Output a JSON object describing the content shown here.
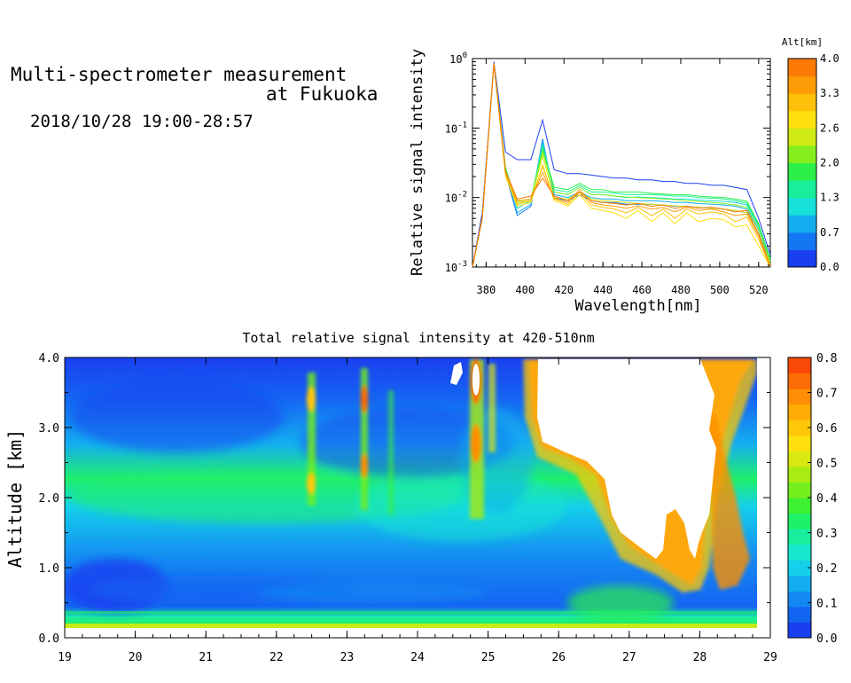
{
  "header": {
    "title_line1": "Multi-spectrometer measurement",
    "title_line2": "at Fukuoka",
    "datetime": "2018/10/28 19:00-28:57"
  },
  "chart_data": [
    {
      "type": "line",
      "id": "spectrum",
      "xlabel": "Wavelength[nm]",
      "ylabel": "Relative signal intensity",
      "x_ticks": [
        "380",
        "400",
        "420",
        "440",
        "460",
        "480",
        "500",
        "520"
      ],
      "y_scale": "log",
      "ylim": [
        0.001,
        1
      ],
      "xlim": [
        373,
        526
      ],
      "y_ticks": [
        {
          "value": 0.001,
          "base": "10",
          "exp": "-3"
        },
        {
          "value": 0.01,
          "base": "10",
          "exp": "-2"
        },
        {
          "value": 0.1,
          "base": "10",
          "exp": "-1"
        },
        {
          "value": 1,
          "base": "10",
          "exp": "0"
        }
      ],
      "colorbar": {
        "label": "Alt[km]",
        "ticks": [
          "0.0",
          "0.7",
          "1.3",
          "2.0",
          "2.6",
          "3.3",
          "4.0"
        ],
        "colors": [
          "#1a3ff0",
          "#1477f2",
          "#14aef0",
          "#16e0d8",
          "#19ee9a",
          "#2bef48",
          "#84ee1c",
          "#cfe914",
          "#fde00c",
          "#fec008",
          "#fd9c06",
          "#fc7a04"
        ]
      },
      "x": [
        373,
        378,
        384,
        390,
        396,
        403,
        409,
        415,
        422,
        428,
        434,
        440,
        446,
        452,
        458,
        465,
        471,
        477,
        483,
        489,
        496,
        502,
        508,
        514,
        520,
        526
      ],
      "series": [
        {
          "color": "#1a3ff0",
          "values": [
            0.001,
            0.006,
            0.9,
            0.045,
            0.035,
            0.035,
            0.13,
            0.025,
            0.022,
            0.022,
            0.021,
            0.02,
            0.019,
            0.019,
            0.018,
            0.018,
            0.017,
            0.017,
            0.016,
            0.016,
            0.015,
            0.015,
            0.014,
            0.013,
            0.005,
            0.0015
          ]
        },
        {
          "color": "#1477f2",
          "values": [
            0.001,
            0.005,
            0.85,
            0.022,
            0.0055,
            0.0075,
            0.07,
            0.01,
            0.009,
            0.011,
            0.009,
            0.0085,
            0.0085,
            0.008,
            0.008,
            0.008,
            0.0078,
            0.0075,
            0.0075,
            0.0072,
            0.007,
            0.0068,
            0.0065,
            0.006,
            0.003,
            0.0012
          ]
        },
        {
          "color": "#14aef0",
          "values": [
            0.001,
            0.005,
            0.85,
            0.024,
            0.006,
            0.008,
            0.065,
            0.011,
            0.01,
            0.012,
            0.01,
            0.0095,
            0.0095,
            0.009,
            0.009,
            0.009,
            0.0088,
            0.0085,
            0.0085,
            0.0082,
            0.008,
            0.0078,
            0.0075,
            0.0068,
            0.0034,
            0.0013
          ]
        },
        {
          "color": "#16e0d8",
          "values": [
            0.001,
            0.005,
            0.85,
            0.025,
            0.007,
            0.009,
            0.06,
            0.012,
            0.011,
            0.014,
            0.011,
            0.011,
            0.0105,
            0.01,
            0.0102,
            0.01,
            0.0098,
            0.0095,
            0.0095,
            0.0092,
            0.009,
            0.0088,
            0.0085,
            0.0078,
            0.0038,
            0.0013
          ]
        },
        {
          "color": "#19ee9a",
          "values": [
            0.001,
            0.005,
            0.85,
            0.026,
            0.008,
            0.009,
            0.055,
            0.013,
            0.012,
            0.015,
            0.012,
            0.012,
            0.0115,
            0.011,
            0.011,
            0.011,
            0.0108,
            0.0105,
            0.0105,
            0.01,
            0.0098,
            0.0095,
            0.009,
            0.0083,
            0.004,
            0.0013
          ]
        },
        {
          "color": "#2bef48",
          "values": [
            0.001,
            0.005,
            0.85,
            0.027,
            0.008,
            0.009,
            0.05,
            0.014,
            0.013,
            0.016,
            0.013,
            0.013,
            0.012,
            0.012,
            0.012,
            0.0115,
            0.0112,
            0.011,
            0.011,
            0.0105,
            0.0102,
            0.01,
            0.0095,
            0.0088,
            0.0042,
            0.0013
          ]
        },
        {
          "color": "#84ee1c",
          "values": [
            0.001,
            0.005,
            0.85,
            0.024,
            0.009,
            0.0095,
            0.045,
            0.012,
            0.011,
            0.014,
            0.011,
            0.011,
            0.0105,
            0.0102,
            0.01,
            0.0098,
            0.0095,
            0.0093,
            0.009,
            0.0088,
            0.0085,
            0.0082,
            0.0078,
            0.0072,
            0.0035,
            0.0012
          ]
        },
        {
          "color": "#cfe914",
          "values": [
            0.001,
            0.005,
            0.85,
            0.022,
            0.0085,
            0.009,
            0.04,
            0.01,
            0.0095,
            0.012,
            0.0095,
            0.009,
            0.0088,
            0.0085,
            0.0082,
            0.008,
            0.0078,
            0.0076,
            0.0074,
            0.0072,
            0.007,
            0.0068,
            0.0065,
            0.006,
            0.003,
            0.0011
          ]
        },
        {
          "color": "#fde00c",
          "values": [
            0.001,
            0.005,
            0.85,
            0.02,
            0.0075,
            0.0085,
            0.03,
            0.009,
            0.0075,
            0.011,
            0.007,
            0.0065,
            0.006,
            0.005,
            0.0065,
            0.0045,
            0.006,
            0.0042,
            0.006,
            0.0045,
            0.005,
            0.0048,
            0.0038,
            0.004,
            0.002,
            0.001
          ]
        },
        {
          "color": "#fec008",
          "values": [
            0.001,
            0.005,
            0.85,
            0.022,
            0.008,
            0.009,
            0.028,
            0.0095,
            0.008,
            0.012,
            0.0078,
            0.0072,
            0.0068,
            0.006,
            0.0072,
            0.0055,
            0.0068,
            0.005,
            0.0068,
            0.0058,
            0.0062,
            0.0058,
            0.0045,
            0.0052,
            0.0025,
            0.001
          ]
        },
        {
          "color": "#fd9c06",
          "values": [
            0.001,
            0.005,
            0.85,
            0.022,
            0.0088,
            0.0095,
            0.023,
            0.0098,
            0.0085,
            0.013,
            0.0085,
            0.0078,
            0.0075,
            0.007,
            0.0076,
            0.0068,
            0.0072,
            0.0062,
            0.0072,
            0.0065,
            0.0068,
            0.0062,
            0.0055,
            0.0058,
            0.0028,
            0.001
          ]
        },
        {
          "color": "#fc7a04",
          "values": [
            0.001,
            0.005,
            0.85,
            0.024,
            0.0095,
            0.0105,
            0.019,
            0.0105,
            0.009,
            0.012,
            0.009,
            0.0085,
            0.0082,
            0.0078,
            0.0082,
            0.0075,
            0.0078,
            0.007,
            0.0075,
            0.007,
            0.0072,
            0.0068,
            0.0062,
            0.0065,
            0.003,
            0.001
          ]
        }
      ]
    },
    {
      "type": "heatmap",
      "id": "intensity",
      "title": "Total relative signal intensity at 420-510nm",
      "ylabel": "Altitude [km]",
      "xlim": [
        19,
        29
      ],
      "ylim": [
        0,
        4
      ],
      "x_ticks": [
        "19",
        "20",
        "21",
        "22",
        "23",
        "24",
        "25",
        "26",
        "27",
        "28",
        "29"
      ],
      "y_ticks": [
        "0.0",
        "1.0",
        "2.0",
        "3.0",
        "4.0"
      ],
      "data_time_range": [
        19.0,
        28.95
      ],
      "colorbar": {
        "range": [
          0,
          0.8
        ],
        "ticks": [
          "0.0",
          "0.1",
          "0.2",
          "0.3",
          "0.4",
          "0.5",
          "0.6",
          "0.7",
          "0.8"
        ],
        "colors": [
          "#1a3ff0",
          "#1464f2",
          "#1488f2",
          "#14aef0",
          "#14d0ea",
          "#16e8d0",
          "#18ee9e",
          "#1ff06a",
          "#3ef032",
          "#74ee1c",
          "#a8ec14",
          "#d8e810",
          "#fde00c",
          "#fec808",
          "#feac06",
          "#fd8e05",
          "#fb6c04",
          "#f84a06"
        ]
      },
      "annotations": {
        "saturated_region": "white = above 0.8 (cloud)"
      }
    }
  ]
}
